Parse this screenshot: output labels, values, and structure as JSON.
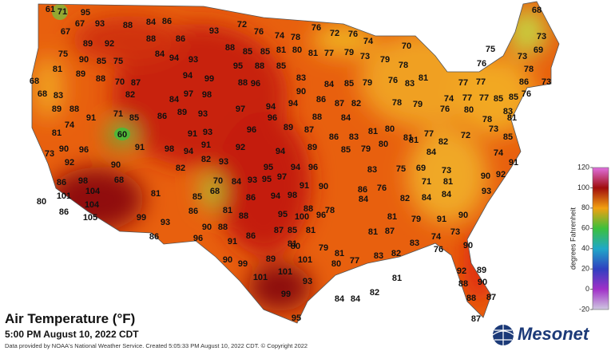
{
  "title": "Air Temperature (°F)",
  "subtitle": "5:00 PM August 10, 2022 CDT",
  "credit": "Data provided by NOAA's National Weather Service. Created 5:05:33 PM August 10, 2022 CDT. © Copyright 2022",
  "logo": "Mesonet",
  "colorbar": {
    "label": "degrees Fahrenheit",
    "lim": [
      -20,
      120
    ],
    "ticks": [
      120,
      100,
      80,
      60,
      40,
      20,
      0,
      -20
    ],
    "colors": [
      "#e070e0",
      "#a00c0c",
      "#f2a010",
      "#3cc03c",
      "#20a8c8",
      "#3040c0",
      "#a030c8",
      "#cfc8e0"
    ]
  },
  "stations": [
    61,
    71,
    95,
    67,
    93,
    88,
    84,
    86,
    93,
    72,
    76,
    74,
    78,
    76,
    72,
    76,
    74,
    70,
    68,
    73,
    69,
    75,
    67,
    89,
    92,
    88,
    86,
    88,
    85,
    85,
    81,
    80,
    81,
    77,
    79,
    73,
    79,
    76,
    73,
    75,
    90,
    85,
    75,
    84,
    94,
    93,
    95,
    88,
    85,
    78,
    81,
    68,
    81,
    89,
    88,
    70,
    87,
    94,
    99,
    88,
    96,
    83,
    84,
    85,
    79,
    76,
    83,
    77,
    77,
    78,
    86,
    73,
    68,
    83,
    82,
    84,
    97,
    98,
    90,
    86,
    87,
    82,
    78,
    79,
    74,
    77,
    77,
    85,
    85,
    76,
    89,
    88,
    71,
    85,
    86,
    89,
    93,
    97,
    94,
    94,
    88,
    84,
    76,
    80,
    78,
    83,
    81,
    81,
    74,
    91,
    60,
    91,
    93,
    96,
    96,
    89,
    87,
    86,
    83,
    81,
    80,
    81,
    77,
    82,
    72,
    73,
    85,
    73,
    90,
    96,
    91,
    98,
    94,
    91,
    92,
    94,
    89,
    85,
    79,
    80,
    81,
    84,
    74,
    92,
    82,
    82,
    93,
    95,
    94,
    96,
    83,
    75,
    69,
    73,
    91,
    86,
    98,
    90,
    68,
    70,
    84,
    93,
    95,
    97,
    91,
    90,
    86,
    76,
    71,
    81,
    90,
    92,
    80,
    101,
    104,
    81,
    85,
    68,
    86,
    94,
    98,
    78,
    88,
    84,
    82,
    84,
    84,
    93,
    86,
    104,
    86,
    81,
    88,
    95,
    100,
    96,
    81,
    79,
    91,
    90,
    105,
    99,
    93,
    87,
    85,
    81,
    81,
    87,
    83,
    74,
    73,
    86,
    90,
    88,
    96,
    91,
    86,
    81,
    80,
    79,
    81,
    77,
    83,
    82,
    76,
    90,
    90,
    99,
    89,
    101,
    80,
    92,
    89,
    88,
    90,
    101,
    101,
    93,
    81,
    82,
    84,
    84,
    99,
    88,
    87,
    95,
    87
  ]
}
